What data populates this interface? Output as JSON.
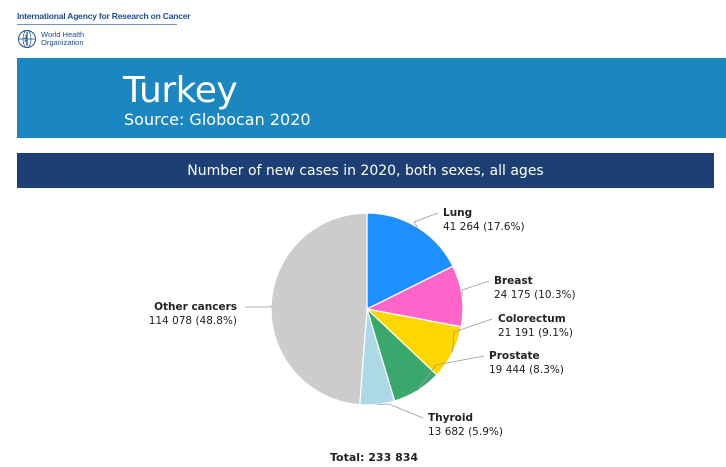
{
  "header": {
    "agency_name": "International Agency for Research on Cancer",
    "who_name_line1": "World Health",
    "who_name_line2": "Organization",
    "who_emblem_icon": "who-emblem-icon"
  },
  "banner": {
    "country": "Turkey",
    "source": "Source: Globocan 2020",
    "color": "#1c86c0"
  },
  "subtitle": {
    "text": "Number of new cases in 2020, both sexes, all ages",
    "color": "#1d3f73"
  },
  "chart_data": {
    "type": "pie",
    "start_angle_deg": 0,
    "direction": "clockwise",
    "slices": [
      {
        "label": "Lung",
        "value": 41264,
        "value_text": "41 264 (17.6%)",
        "percent": 17.6,
        "color": "#1f8fff"
      },
      {
        "label": "Breast",
        "value": 24175,
        "value_text": "24 175 (10.3%)",
        "percent": 10.3,
        "color": "#ff66cc"
      },
      {
        "label": "Colorectum",
        "value": 21191,
        "value_text": "21 191 (9.1%)",
        "percent": 9.1,
        "color": "#ffd700"
      },
      {
        "label": "Prostate",
        "value": 19444,
        "value_text": "19 444 (8.3%)",
        "percent": 8.3,
        "color": "#3aa76d"
      },
      {
        "label": "Thyroid",
        "value": 13682,
        "value_text": "13 682 (5.9%)",
        "percent": 5.9,
        "color": "#add8e6"
      },
      {
        "label": "Other cancers",
        "value": 114078,
        "value_text": "114 078 (48.8%)",
        "percent": 48.8,
        "color": "#cccccc"
      }
    ],
    "total_text": "Total: 233 834"
  }
}
